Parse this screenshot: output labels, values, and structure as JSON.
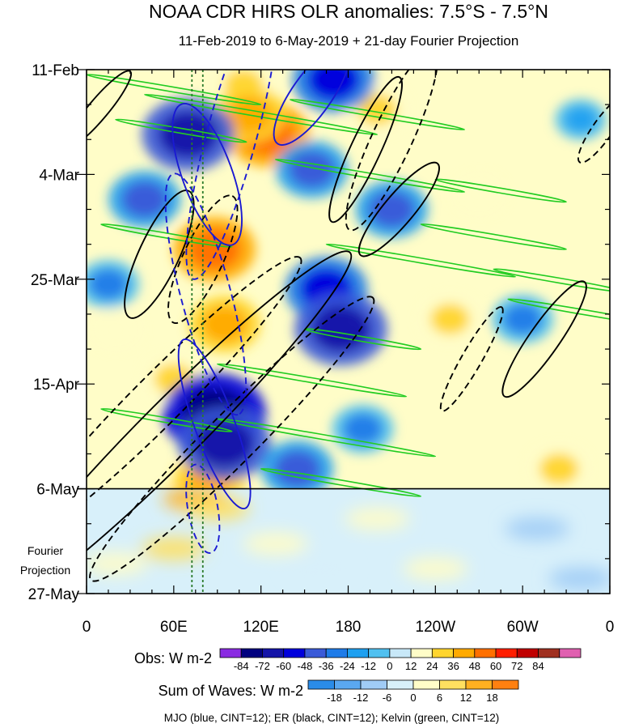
{
  "chart_data": {
    "type": "heatmap",
    "title": "NOAA CDR HIRS OLR anomalies: 7.5°S - 7.5°N",
    "subtitle": "11-Feb-2019 to 6-May-2019 + 21-day Fourier Projection",
    "x_ticks": [
      {
        "lon": 0,
        "label": "0"
      },
      {
        "lon": 60,
        "label": "60E"
      },
      {
        "lon": 120,
        "label": "120E"
      },
      {
        "lon": 180,
        "label": "180"
      },
      {
        "lon": 240,
        "label": "120W"
      },
      {
        "lon": 300,
        "label": "60W"
      },
      {
        "lon": 360,
        "label": "0"
      }
    ],
    "xlim": [
      0,
      360
    ],
    "y_ticks": [
      {
        "day": 0,
        "label": "11-Feb"
      },
      {
        "day": 21,
        "label": "4-Mar"
      },
      {
        "day": 42,
        "label": "25-Mar"
      },
      {
        "day": 63,
        "label": "15-Apr"
      },
      {
        "day": 84,
        "label": "6-May"
      },
      {
        "day": 105,
        "label": "27-May"
      }
    ],
    "ylim": [
      0,
      105
    ],
    "projection_start_day": 84,
    "projection_label_lines": [
      "Fourier",
      "Projection"
    ],
    "reference_lons": [
      72.5,
      80
    ],
    "obs_colorbar": {
      "label": "Obs: W m-2",
      "levels": [
        -84,
        -72,
        -60,
        -48,
        -36,
        -24,
        -12,
        0,
        12,
        24,
        36,
        48,
        60,
        72,
        84
      ],
      "colors": [
        "#8a2be2",
        "#00007f",
        "#1414a8",
        "#0000dc",
        "#3a5ad8",
        "#1e7be8",
        "#1ea0f0",
        "#50c0f0",
        "#c8e8f8",
        "#fffdc8",
        "#ffd52e",
        "#ffaa00",
        "#ff7000",
        "#ff1e00",
        "#c00000",
        "#a03020",
        "#e060b0"
      ]
    },
    "wave_colorbar": {
      "label": "Sum of Waves: W m-2",
      "levels": [
        -18,
        -12,
        -6,
        0,
        6,
        12,
        18
      ],
      "colors": [
        "#2a8ce8",
        "#5aa8f0",
        "#a0ccf6",
        "#d8f0fa",
        "#fffdc8",
        "#ffe060",
        "#ffb020",
        "#ff8010"
      ]
    },
    "contour_legend": "MJO (blue, CINT=12); ER (black, CINT=12); Kelvin (green, CINT=12)",
    "wave_colors": {
      "mjo": "#1a1ad2",
      "er": "#000000",
      "kelvin": "#22cc22"
    },
    "obs_anomaly_features": [
      {
        "lon": 108,
        "day": 3,
        "value": 36
      },
      {
        "lon": 125,
        "day": 13,
        "value": 60
      },
      {
        "lon": 112,
        "day": 9,
        "value": 48
      },
      {
        "lon": 88,
        "day": 36,
        "value": 60
      },
      {
        "lon": 95,
        "day": 51,
        "value": 48
      },
      {
        "lon": 85,
        "day": 82,
        "value": 48
      },
      {
        "lon": 60,
        "day": 62,
        "value": 36
      },
      {
        "lon": 200,
        "day": 8,
        "value": 36
      },
      {
        "lon": 250,
        "day": 50,
        "value": 36
      },
      {
        "lon": 325,
        "day": 80,
        "value": 36
      },
      {
        "lon": 20,
        "day": 52,
        "value": 24
      },
      {
        "lon": 175,
        "day": 55,
        "value": 24
      },
      {
        "lon": 270,
        "day": 25,
        "value": 24
      },
      {
        "lon": 70,
        "day": 13,
        "value": -72
      },
      {
        "lon": 40,
        "day": 26,
        "value": -48
      },
      {
        "lon": 15,
        "day": 43,
        "value": -36
      },
      {
        "lon": 155,
        "day": 20,
        "value": -48
      },
      {
        "lon": 165,
        "day": 44,
        "value": -60
      },
      {
        "lon": 175,
        "day": 52,
        "value": -72
      },
      {
        "lon": 210,
        "day": 28,
        "value": -48
      },
      {
        "lon": 88,
        "day": 69,
        "value": -84
      },
      {
        "lon": 95,
        "day": 75,
        "value": -72
      },
      {
        "lon": 170,
        "day": 2,
        "value": -60
      },
      {
        "lon": 145,
        "day": 80,
        "value": -48
      },
      {
        "lon": 300,
        "day": 50,
        "value": -36
      },
      {
        "lon": 190,
        "day": 72,
        "value": -36
      },
      {
        "lon": 340,
        "day": 10,
        "value": -24
      }
    ],
    "mjo_contours": [
      {
        "lon": 83,
        "day": 21,
        "rx": 15,
        "ry": 5,
        "angle": 70,
        "dashed": false
      },
      {
        "lon": 100,
        "day": 13,
        "rx": 30,
        "ry": 5,
        "angle": -75,
        "dashed": true
      },
      {
        "lon": 82,
        "day": 45,
        "rx": 25,
        "ry": 5,
        "angle": 75,
        "dashed": true
      },
      {
        "lon": 88,
        "day": 71,
        "rx": 18,
        "ry": 4,
        "angle": 70,
        "dashed": false
      },
      {
        "lon": 80,
        "day": 88,
        "rx": 9,
        "ry": 3,
        "angle": 80,
        "dashed": true
      },
      {
        "lon": 155,
        "day": 5,
        "rx": 12,
        "ry": 4,
        "angle": -55,
        "dashed": false
      }
    ],
    "er_contours": [
      {
        "lon": 50,
        "day": 37,
        "rx": 14,
        "ry": 4,
        "angle": -65,
        "dashed": false
      },
      {
        "lon": 80,
        "day": 38,
        "rx": 14,
        "ry": 4,
        "angle": -65,
        "dashed": true
      },
      {
        "lon": 50,
        "day": 66,
        "rx": 40,
        "ry": 5,
        "angle": -45,
        "dashed": true
      },
      {
        "lon": 60,
        "day": 72,
        "rx": 50,
        "ry": 6,
        "angle": -45,
        "dashed": false
      },
      {
        "lon": 100,
        "day": 74,
        "rx": 40,
        "ry": 5,
        "angle": -45,
        "dashed": true
      },
      {
        "lon": 210,
        "day": 14,
        "rx": 20,
        "ry": 4,
        "angle": -65,
        "dashed": true
      },
      {
        "lon": 192,
        "day": 16,
        "rx": 16,
        "ry": 3,
        "angle": -65,
        "dashed": false
      },
      {
        "lon": 215,
        "day": 28,
        "rx": 12,
        "ry": 3,
        "angle": -50,
        "dashed": false
      },
      {
        "lon": 265,
        "day": 58,
        "rx": 12,
        "ry": 2,
        "angle": -60,
        "dashed": true
      },
      {
        "lon": 315,
        "day": 54,
        "rx": 14,
        "ry": 3,
        "angle": -55,
        "dashed": false
      },
      {
        "lon": 355,
        "day": 12,
        "rx": 8,
        "ry": 2,
        "angle": -55,
        "dashed": true
      },
      {
        "lon": 8,
        "day": 8,
        "rx": 10,
        "ry": 2,
        "angle": -50,
        "dashed": false
      }
    ],
    "kelvin_streaks": [
      {
        "lon": 0,
        "day": 1,
        "len": 120
      },
      {
        "lon": 40,
        "day": 5,
        "len": 160
      },
      {
        "lon": 20,
        "day": 10,
        "len": 90
      },
      {
        "lon": 140,
        "day": 6,
        "len": 120
      },
      {
        "lon": 130,
        "day": 18,
        "len": 130
      },
      {
        "lon": 240,
        "day": 22,
        "len": 90
      },
      {
        "lon": 10,
        "day": 31,
        "len": 90
      },
      {
        "lon": 165,
        "day": 35,
        "len": 130
      },
      {
        "lon": 230,
        "day": 31,
        "len": 100
      },
      {
        "lon": 290,
        "day": 46,
        "len": 110
      },
      {
        "lon": 150,
        "day": 52,
        "len": 80
      },
      {
        "lon": 90,
        "day": 59,
        "len": 130
      },
      {
        "lon": 10,
        "day": 68,
        "len": 90
      },
      {
        "lon": 90,
        "day": 70,
        "len": 150
      },
      {
        "lon": 120,
        "day": 80,
        "len": 110
      },
      {
        "lon": 280,
        "day": 40,
        "len": 90
      }
    ]
  }
}
